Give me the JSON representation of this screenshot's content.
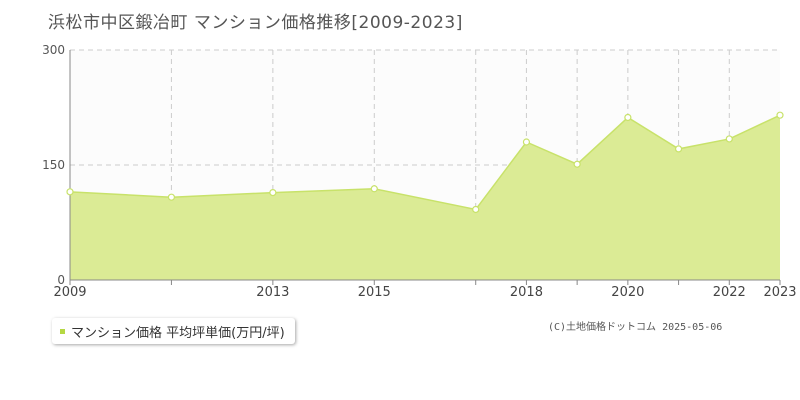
{
  "title": "浜松市中区鍛冶町 マンション価格推移[2009-2023]",
  "legend": {
    "label": "マンション価格 平均坪単価(万円/坪)"
  },
  "copyright": "(C)土地価格ドットコム 2025-05-06",
  "colors": {
    "fill": "#dbeb95",
    "line": "#c8e26a",
    "point_fill": "#ffffff",
    "grid": "#cccccc",
    "swatch": "#b5d843"
  },
  "chart_data": {
    "type": "area",
    "x": [
      2009,
      2011,
      2013,
      2015,
      2017,
      2018,
      2019,
      2020,
      2021,
      2022,
      2023
    ],
    "xlim": [
      2009,
      2023
    ],
    "x_tick_labels": [
      "2009",
      "2013",
      "2015",
      "2018",
      "2020",
      "2022",
      "2023"
    ],
    "x_tick_values": [
      2009,
      2013,
      2015,
      2018,
      2020,
      2022,
      2023
    ],
    "x_minor_ticks": [
      2011,
      2017,
      2019,
      2021
    ],
    "series": [
      {
        "values": [
          115,
          108,
          114,
          119,
          92,
          180,
          151,
          212,
          171,
          184,
          215
        ]
      }
    ],
    "ylim": [
      0,
      300
    ],
    "y_ticks": [
      0,
      150,
      300
    ],
    "grid": true,
    "legend_position": "bottom-left"
  }
}
